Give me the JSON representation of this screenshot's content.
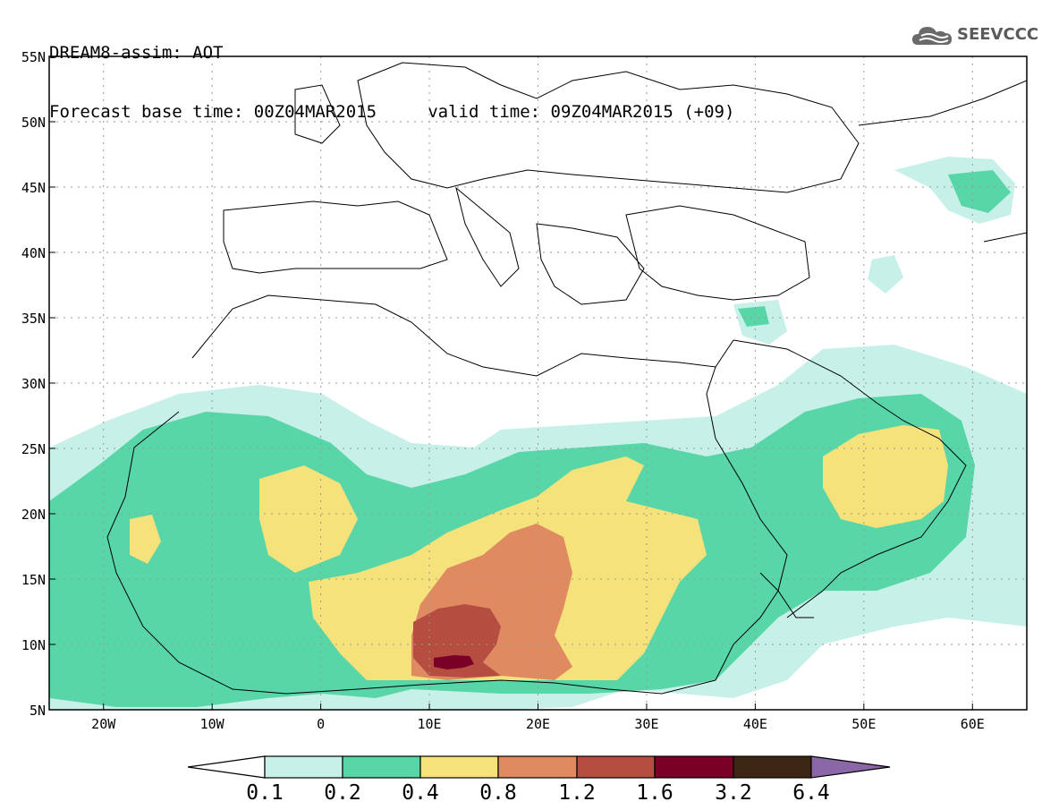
{
  "header": {
    "line1": "DREAM8-assim: AOT",
    "line2": "Forecast base time: 00Z04MAR2015     valid time: 09Z04MAR2015 (+09)",
    "logo_text": "SEEVCCC"
  },
  "map": {
    "lat_labels": [
      "55N",
      "50N",
      "45N",
      "40N",
      "35N",
      "30N",
      "25N",
      "20N",
      "15N",
      "10N",
      "5N"
    ],
    "lon_labels": [
      "20W",
      "10W",
      "0",
      "10E",
      "20E",
      "30E",
      "40E",
      "50E",
      "60E"
    ],
    "lat_values": [
      55,
      50,
      45,
      40,
      35,
      30,
      25,
      20,
      15,
      10,
      5
    ],
    "lon_values": [
      -20,
      -10,
      0,
      10,
      20,
      30,
      40,
      50,
      60
    ],
    "lon_range": [
      -25,
      65
    ],
    "lat_range": [
      5,
      55
    ]
  },
  "colorbar": {
    "labels": [
      "0.1",
      "0.2",
      "0.4",
      "0.8",
      "1.2",
      "1.6",
      "3.2",
      "6.4"
    ],
    "colors": [
      "#ffffff",
      "#c6f0e8",
      "#58d6a8",
      "#f5e27a",
      "#e08a62",
      "#b54e40",
      "#7a0028",
      "#3e2614",
      "#8a68a8"
    ]
  }
}
